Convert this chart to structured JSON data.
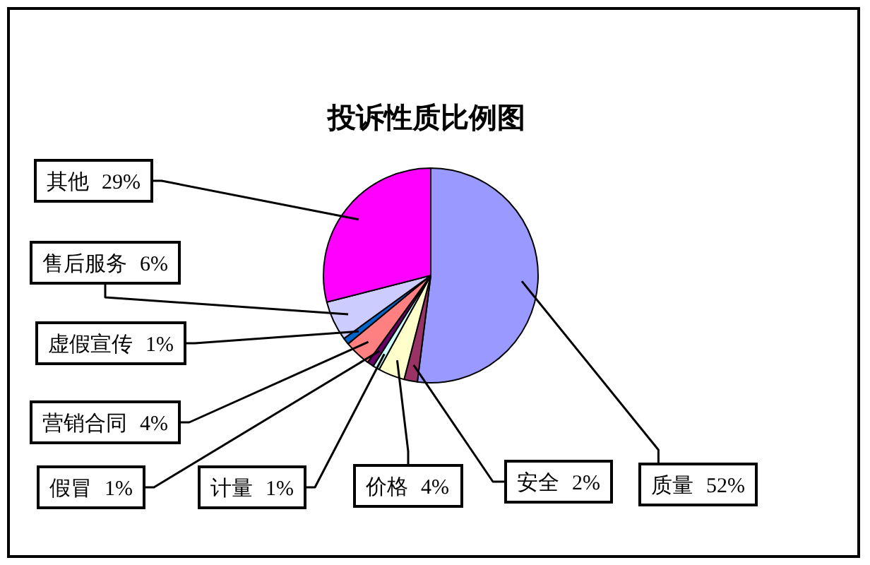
{
  "chart_data": {
    "type": "pie",
    "title": "投诉性质比例图",
    "categories": [
      "质量",
      "安全",
      "价格",
      "计量",
      "假冒",
      "营销合同",
      "虚假宣传",
      "售后服务",
      "其他"
    ],
    "values": [
      52,
      2,
      4,
      1,
      1,
      4,
      1,
      6,
      29
    ],
    "value_labels": [
      "52%",
      "2%",
      "4%",
      "1%",
      "1%",
      "4%",
      "1%",
      "6%",
      "29%"
    ],
    "colors": [
      "#9999ff",
      "#993366",
      "#ffffcc",
      "#ccffff",
      "#660066",
      "#ff8080",
      "#0066cc",
      "#ccccff",
      "#ff00ff"
    ]
  }
}
